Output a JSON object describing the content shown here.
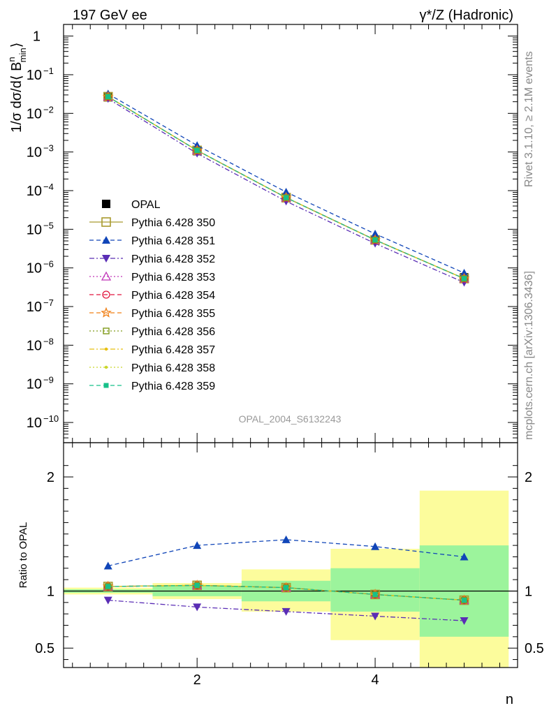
{
  "header": {
    "left": "197 GeV ee",
    "right": "γ*/Z (Hadronic)"
  },
  "side": {
    "rivet": "Rivet 3.1.10, ≥ 2.1M events",
    "mcplots": "mcplots.cern.ch [arXiv:1306.3436]"
  },
  "watermark": "OPAL_2004_S6132243",
  "chart_data": [
    {
      "type": "line",
      "panel": "main",
      "yscale": "log",
      "ylabel": "1/σ dσ/d⟨ B",
      "ylabel_sup": "n",
      "ylabel_sub": "min",
      "ylabel_close": "⟩",
      "xlim": [
        0.5,
        5.6
      ],
      "ylim": [
        3e-11,
        2
      ],
      "x": [
        1,
        2,
        3,
        4,
        5
      ],
      "yticks": [
        {
          "v": 1,
          "label": "1"
        },
        {
          "v": 0.1,
          "label": "10",
          "exp": "−1"
        },
        {
          "v": 0.01,
          "label": "10",
          "exp": "−2"
        },
        {
          "v": 0.001,
          "label": "10",
          "exp": "−3"
        },
        {
          "v": 0.0001,
          "label": "10",
          "exp": "−4"
        },
        {
          "v": 1e-05,
          "label": "10",
          "exp": "−5"
        },
        {
          "v": 1e-06,
          "label": "10",
          "exp": "−6"
        },
        {
          "v": 1e-07,
          "label": "10",
          "exp": "−7"
        },
        {
          "v": 1e-08,
          "label": "10",
          "exp": "−8"
        },
        {
          "v": 1e-09,
          "label": "10",
          "exp": "−9"
        },
        {
          "v": 1e-10,
          "label": "10",
          "exp": "−10"
        }
      ],
      "series": [
        {
          "name": "OPAL",
          "color": "#000000",
          "marker": "filled-square",
          "dash": "none",
          "values": [
            0.026,
            0.00105,
            6.4e-05,
            5.4e-06,
            5.7e-07
          ]
        },
        {
          "name": "Pythia 6.428 350",
          "color": "#a89a2d",
          "marker": "open-square",
          "dash": "solid",
          "values": [
            0.027,
            0.0011,
            6.6e-05,
            5.3e-06,
            5.3e-07
          ]
        },
        {
          "name": "Pythia 6.428 351",
          "color": "#1045b8",
          "marker": "filled-triangle-up",
          "dash": "dashed",
          "values": [
            0.032,
            0.00148,
            9.2e-05,
            7.6e-06,
            7.4e-07
          ]
        },
        {
          "name": "Pythia 6.428 352",
          "color": "#5a2db5",
          "marker": "filled-triangle-down",
          "dash": "dashdot",
          "values": [
            0.024,
            0.00092,
            5.3e-05,
            4.3e-06,
            4.2e-07
          ]
        },
        {
          "name": "Pythia 6.428 353",
          "color": "#c034b8",
          "marker": "open-triangle-up",
          "dash": "dotted",
          "values": [
            0.027,
            0.0011,
            6.6e-05,
            5.3e-06,
            5.3e-07
          ]
        },
        {
          "name": "Pythia 6.428 354",
          "color": "#e2153d",
          "marker": "open-circle",
          "dash": "dashed",
          "values": [
            0.027,
            0.0011,
            6.6e-05,
            5.3e-06,
            5.3e-07
          ]
        },
        {
          "name": "Pythia 6.428 355",
          "color": "#f08018",
          "marker": "open-star",
          "dash": "dashed",
          "values": [
            0.027,
            0.0011,
            6.6e-05,
            5.3e-06,
            5.3e-07
          ]
        },
        {
          "name": "Pythia 6.428 356",
          "color": "#7f9a1a",
          "marker": "open-square-small",
          "dash": "dotted",
          "values": [
            0.027,
            0.0011,
            6.6e-05,
            5.3e-06,
            5.3e-07
          ]
        },
        {
          "name": "Pythia 6.428 357",
          "color": "#e8c010",
          "marker": "small-dot",
          "dash": "dashdot",
          "values": [
            0.027,
            0.0011,
            6.6e-05,
            5.3e-06,
            5.3e-07
          ]
        },
        {
          "name": "Pythia 6.428 358",
          "color": "#c9d62a",
          "marker": "small-dot",
          "dash": "dotted",
          "values": [
            0.027,
            0.0011,
            6.6e-05,
            5.3e-06,
            5.3e-07
          ]
        },
        {
          "name": "Pythia 6.428 359",
          "color": "#18c08a",
          "marker": "filled-square-small",
          "dash": "dashed",
          "values": [
            0.027,
            0.0011,
            6.6e-05,
            5.3e-06,
            5.3e-07
          ]
        }
      ]
    },
    {
      "type": "line",
      "panel": "ratio",
      "ylabel": "Ratio to OPAL",
      "xlabel": "n",
      "xlim": [
        0.5,
        5.6
      ],
      "ylim": [
        0.33,
        2.3
      ],
      "x": [
        1,
        2,
        3,
        4,
        5
      ],
      "xticks": [
        2,
        4
      ],
      "yticks": [
        {
          "v": 0.5,
          "label": "0.5"
        },
        {
          "v": 1,
          "label": "1"
        },
        {
          "v": 2,
          "label": "2"
        }
      ],
      "bands": [
        {
          "x0": 0.5,
          "x1": 1.5,
          "inner": [
            0.985,
            1.015
          ],
          "outer": [
            0.97,
            1.03
          ]
        },
        {
          "x0": 1.5,
          "x1": 2.5,
          "inner": [
            0.955,
            1.045
          ],
          "outer": [
            0.93,
            1.07
          ]
        },
        {
          "x0": 2.5,
          "x1": 3.5,
          "inner": [
            0.91,
            1.09
          ],
          "outer": [
            0.82,
            1.19
          ]
        },
        {
          "x0": 3.5,
          "x1": 4.5,
          "inner": [
            0.82,
            1.2
          ],
          "outer": [
            0.57,
            1.37
          ]
        },
        {
          "x0": 4.5,
          "x1": 5.5,
          "inner": [
            0.6,
            1.4
          ],
          "outer": [
            0.33,
            1.88
          ]
        }
      ],
      "band_colors": {
        "inner": "#9cf49c",
        "outer": "#fcfc9c"
      },
      "series": [
        {
          "name": "Pythia 6.428 350",
          "values": [
            1.04,
            1.05,
            1.03,
            0.97,
            0.92
          ]
        },
        {
          "name": "Pythia 6.428 351",
          "values": [
            1.22,
            1.4,
            1.45,
            1.39,
            1.3
          ]
        },
        {
          "name": "Pythia 6.428 352",
          "values": [
            0.92,
            0.86,
            0.82,
            0.78,
            0.74
          ]
        },
        {
          "name": "Pythia 6.428 353",
          "values": [
            1.04,
            1.05,
            1.03,
            0.97,
            0.92
          ]
        },
        {
          "name": "Pythia 6.428 354",
          "values": [
            1.04,
            1.05,
            1.03,
            0.97,
            0.92
          ]
        },
        {
          "name": "Pythia 6.428 355",
          "values": [
            1.04,
            1.05,
            1.03,
            0.97,
            0.92
          ]
        },
        {
          "name": "Pythia 6.428 356",
          "values": [
            1.04,
            1.05,
            1.03,
            0.97,
            0.92
          ]
        },
        {
          "name": "Pythia 6.428 357",
          "values": [
            1.04,
            1.05,
            1.03,
            0.97,
            0.92
          ]
        },
        {
          "name": "Pythia 6.428 358",
          "values": [
            1.04,
            1.05,
            1.03,
            0.97,
            0.92
          ]
        },
        {
          "name": "Pythia 6.428 359",
          "values": [
            1.04,
            1.05,
            1.03,
            0.97,
            0.92
          ]
        }
      ]
    }
  ]
}
